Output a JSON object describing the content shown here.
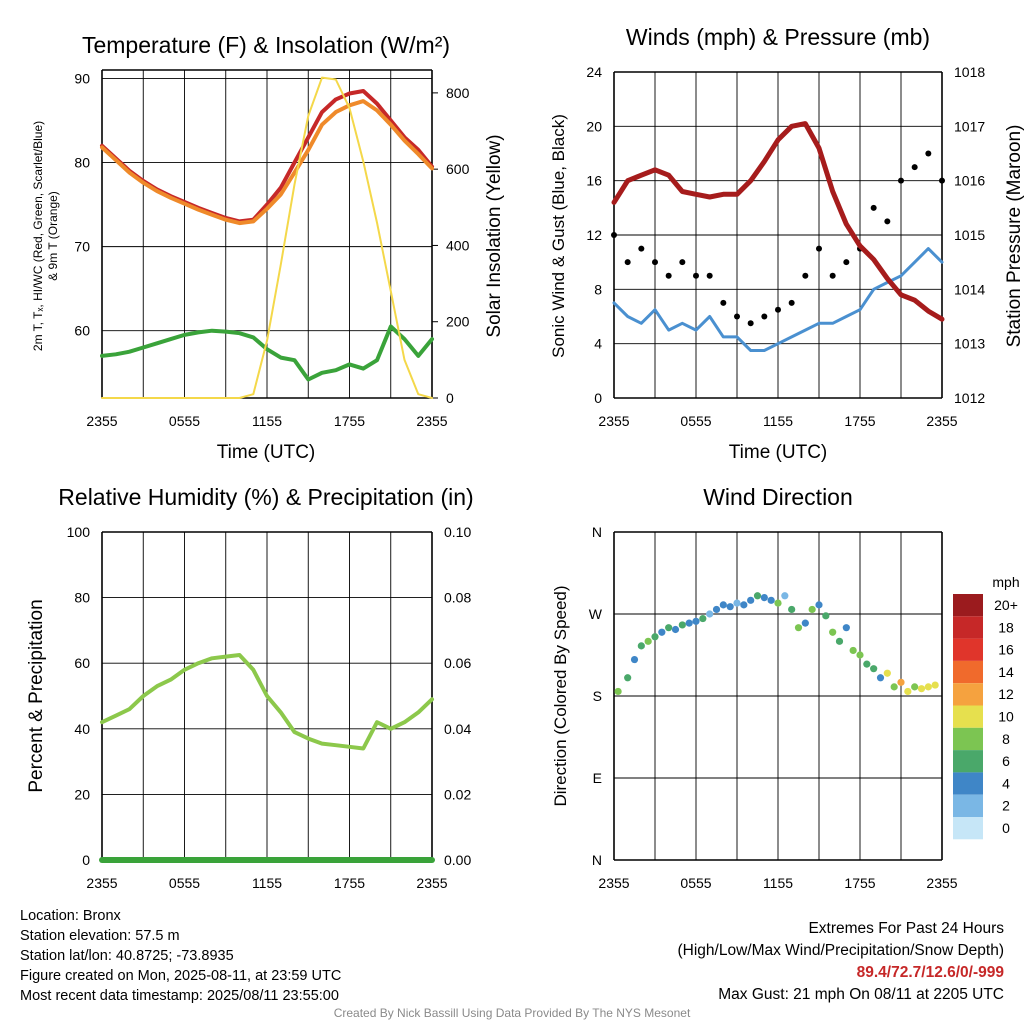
{
  "panels": {
    "temp": {
      "title": "Temperature (F) & Insolation (W/m²)",
      "ylabel_line1": "2m T, Tₓ, HI/WC (Red, Green, Scarlet/Blue)",
      "ylabel_line2": "& 9m T (Orange)",
      "y2label": "Solar Insolation (Yellow)",
      "xlabel": "Time (UTC)",
      "yticks": [
        "60",
        "70",
        "80",
        "90"
      ],
      "y2ticks": [
        "0",
        "200",
        "400",
        "600",
        "800"
      ],
      "xticks": [
        "2355",
        "0555",
        "1155",
        "1755",
        "2355"
      ]
    },
    "wind": {
      "title": "Winds (mph) & Pressure (mb)",
      "ylabel": "Sonic Wind & Gust (Blue, Black)",
      "y2label": "Station Pressure (Maroon)",
      "xlabel": "Time (UTC)",
      "yticks": [
        "0",
        "4",
        "8",
        "12",
        "16",
        "20",
        "24"
      ],
      "y2ticks": [
        "1012",
        "1013",
        "1014",
        "1015",
        "1016",
        "1017",
        "1018"
      ],
      "xticks": [
        "2355",
        "0555",
        "1155",
        "1755",
        "2355"
      ]
    },
    "rh": {
      "title": "Relative Humidity (%) & Precipitation (in)",
      "ylabel": "Percent & Precipitation",
      "yticks": [
        "0",
        "20",
        "40",
        "60",
        "80",
        "100"
      ],
      "y2ticks": [
        "0.00",
        "0.02",
        "0.04",
        "0.06",
        "0.08",
        "0.10"
      ],
      "xticks": [
        "2355",
        "0555",
        "1155",
        "1755",
        "2355"
      ]
    },
    "dir": {
      "title": "Wind Direction",
      "ylabel": "Direction (Colored By Speed)",
      "yticks": [
        "N",
        "E",
        "S",
        "W",
        "N"
      ],
      "xticks": [
        "2355",
        "0555",
        "1155",
        "1755",
        "2355"
      ],
      "legend_title": "mph",
      "legend_labels": [
        "20+",
        "18",
        "16",
        "14",
        "12",
        "10",
        "8",
        "6",
        "4",
        "2",
        "0"
      ]
    }
  },
  "colors": {
    "red": "#c62828",
    "orange": "#ef8a2a",
    "green": "#3aa33a",
    "yellow": "#f4d84a",
    "maroon": "#a61c1c",
    "blue": "#4a90d0",
    "black": "#000000",
    "rh": "#8cc84b",
    "precip": "#3aa33a",
    "speed_scale": [
      "#9b1b1e",
      "#c62828",
      "#e0352b",
      "#f06a2c",
      "#f5a23f",
      "#e6e04e",
      "#7cc552",
      "#4aa86a",
      "#3f86c7",
      "#7ab7e5",
      "#c6e6f7"
    ]
  },
  "chart_data": [
    {
      "type": "line",
      "title": "Temperature (F) & Insolation (W/m²)",
      "x": [
        0,
        1,
        2,
        3,
        4,
        5,
        6,
        7,
        8,
        9,
        10,
        11,
        12,
        13,
        14,
        15,
        16,
        17,
        18,
        19,
        20,
        21,
        22,
        23,
        24
      ],
      "xticks": [
        "2355",
        "0555",
        "1155",
        "1755",
        "2355"
      ],
      "ylim": [
        52,
        91
      ],
      "y2lim": [
        0,
        860
      ],
      "series": [
        {
          "name": "2m T",
          "color": "red",
          "values": [
            82,
            80.5,
            79,
            77.8,
            76.8,
            76,
            75.3,
            74.6,
            74,
            73.4,
            73,
            73.2,
            75,
            77,
            80,
            83,
            86,
            87.5,
            88.2,
            88.5,
            87,
            85,
            83,
            81.5,
            79.5
          ]
        },
        {
          "name": "9m T",
          "color": "orange",
          "values": [
            81.8,
            80.3,
            78.8,
            77.6,
            76.6,
            75.8,
            75.1,
            74.4,
            73.8,
            73.2,
            72.8,
            73,
            74.5,
            76.2,
            78.8,
            81.5,
            84.5,
            86,
            86.8,
            87.3,
            86.2,
            84.5,
            82.6,
            81,
            79.3
          ]
        },
        {
          "name": "Td",
          "color": "green",
          "values": [
            57,
            57.2,
            57.5,
            58,
            58.5,
            59,
            59.5,
            59.8,
            60,
            59.9,
            59.7,
            59.2,
            57.8,
            56.8,
            56.5,
            54.2,
            55,
            55.3,
            56,
            55.5,
            56.5,
            60.5,
            59,
            57,
            59
          ]
        },
        {
          "name": "Solar",
          "axis": "y2",
          "color": "yellow",
          "values": [
            0,
            0,
            0,
            0,
            0,
            0,
            0,
            0,
            0,
            0,
            0,
            10,
            150,
            350,
            560,
            740,
            840,
            835,
            760,
            620,
            460,
            280,
            100,
            10,
            0
          ]
        }
      ]
    },
    {
      "type": "line",
      "title": "Winds (mph) & Pressure (mb)",
      "x": [
        0,
        1,
        2,
        3,
        4,
        5,
        6,
        7,
        8,
        9,
        10,
        11,
        12,
        13,
        14,
        15,
        16,
        17,
        18,
        19,
        20,
        21,
        22,
        23,
        24
      ],
      "xticks": [
        "2355",
        "0555",
        "1155",
        "1755",
        "2355"
      ],
      "ylim": [
        0,
        24
      ],
      "y2lim": [
        1012,
        1018
      ],
      "series": [
        {
          "name": "Sonic Wind",
          "color": "blue",
          "values": [
            7,
            6,
            5.5,
            6.5,
            5,
            5.5,
            5,
            6,
            4.5,
            4.5,
            3.5,
            3.5,
            4,
            4.5,
            5,
            5.5,
            5.5,
            6,
            6.5,
            8,
            8.5,
            9,
            10,
            11,
            10
          ]
        },
        {
          "name": "Gust",
          "color": "black",
          "values": [
            12,
            10,
            11,
            10,
            9,
            10,
            9,
            9,
            7,
            6,
            5.5,
            6,
            6.5,
            7,
            9,
            11,
            9,
            10,
            11,
            14,
            13,
            16,
            17,
            18,
            16
          ]
        },
        {
          "name": "Pressure",
          "axis": "y2",
          "color": "maroon",
          "values": [
            1015.6,
            1016.0,
            1016.1,
            1016.2,
            1016.1,
            1015.8,
            1015.75,
            1015.7,
            1015.75,
            1015.75,
            1016.0,
            1016.35,
            1016.75,
            1017.0,
            1017.05,
            1016.6,
            1015.8,
            1015.2,
            1014.8,
            1014.55,
            1014.2,
            1013.9,
            1013.8,
            1013.6,
            1013.45
          ]
        }
      ]
    },
    {
      "type": "line",
      "title": "Relative Humidity (%) & Precipitation (in)",
      "x": [
        0,
        1,
        2,
        3,
        4,
        5,
        6,
        7,
        8,
        9,
        10,
        11,
        12,
        13,
        14,
        15,
        16,
        17,
        18,
        19,
        20,
        21,
        22,
        23,
        24
      ],
      "xticks": [
        "2355",
        "0555",
        "1155",
        "1755",
        "2355"
      ],
      "ylim": [
        0,
        100
      ],
      "y2lim": [
        0,
        0.1
      ],
      "series": [
        {
          "name": "RH",
          "color": "rh",
          "values": [
            42,
            44,
            46,
            50,
            53,
            55,
            58,
            60,
            61.5,
            62,
            62.5,
            58,
            50,
            45,
            39,
            37,
            35.5,
            35,
            34.5,
            34,
            42,
            40,
            42,
            45,
            49
          ]
        },
        {
          "name": "Precip",
          "axis": "y2",
          "color": "precip",
          "values": [
            0,
            0,
            0,
            0,
            0,
            0,
            0,
            0,
            0,
            0,
            0,
            0,
            0,
            0,
            0,
            0,
            0,
            0,
            0,
            0,
            0,
            0,
            0,
            0,
            0
          ]
        }
      ]
    },
    {
      "type": "scatter",
      "title": "Wind Direction",
      "xticks": [
        "2355",
        "0555",
        "1155",
        "1755",
        "2355"
      ],
      "yticks": [
        "N",
        "E",
        "S",
        "W",
        "N"
      ],
      "ylim": [
        0,
        360
      ],
      "x": [
        0.3,
        1.0,
        1.5,
        2.0,
        2.5,
        3.0,
        3.5,
        4.0,
        4.5,
        5.0,
        5.5,
        6.0,
        6.5,
        7.0,
        7.5,
        8.0,
        8.5,
        9.0,
        9.5,
        10.0,
        10.5,
        11.0,
        11.5,
        12.0,
        12.5,
        13.0,
        13.5,
        14.0,
        14.5,
        15.0,
        15.5,
        16.0,
        16.5,
        17.0,
        17.5,
        18.0,
        18.5,
        19.0,
        19.5,
        20.0,
        20.5,
        21.0,
        21.5,
        22.0,
        22.5,
        23.0,
        23.5
      ],
      "values": [
        185,
        200,
        220,
        235,
        240,
        245,
        250,
        255,
        253,
        258,
        260,
        262,
        265,
        270,
        275,
        280,
        278,
        282,
        280,
        285,
        290,
        288,
        285,
        282,
        290,
        275,
        255,
        260,
        275,
        280,
        268,
        250,
        240,
        255,
        230,
        225,
        215,
        210,
        200,
        205,
        190,
        195,
        185,
        190,
        188,
        190,
        192
      ],
      "speeds": [
        8,
        6,
        4,
        6,
        7,
        5,
        4,
        6,
        3,
        5,
        4,
        3,
        5,
        2,
        4,
        3,
        4,
        2,
        3,
        4,
        5,
        3,
        4,
        7,
        2,
        6,
        7,
        4,
        7,
        3,
        6,
        7,
        5,
        4,
        7,
        8,
        5,
        6,
        4,
        10,
        8,
        11,
        9,
        8,
        10,
        9,
        10
      ]
    }
  ],
  "footer": {
    "location": "Location: Bronx",
    "elevation": "Station elevation: 57.5 m",
    "latlon": "Station lat/lon: 40.8725; -73.8935",
    "created": "Figure created on Mon, 2025-08-11, at 23:59 UTC",
    "recent": "Most recent data timestamp: 2025/08/11 23:55:00",
    "extremes_title": "Extremes For Past 24 Hours",
    "extremes_desc": "(High/Low/Max Wind/Precipitation/Snow Depth)",
    "extremes_values": "89.4/72.7/12.6/0/-999",
    "max_gust": "Max Gust: 21 mph On 08/11 at 2205 UTC",
    "credit": "Created By Nick Bassill Using Data Provided By The NYS Mesonet"
  }
}
